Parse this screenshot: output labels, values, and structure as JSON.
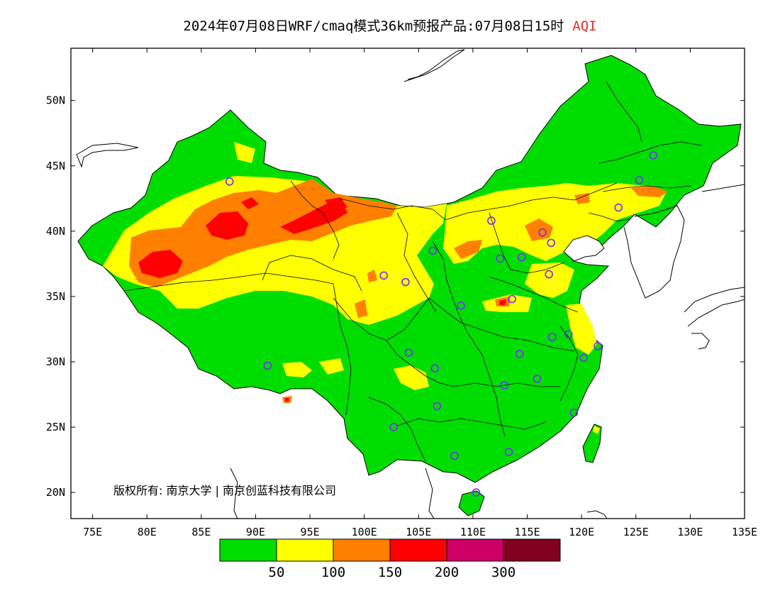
{
  "title": {
    "main": "2024年07月08日WRF/cmaq模式36km预报产品:07月08日15时",
    "variable": "AQI"
  },
  "axes": {
    "lon_labels": [
      "75E",
      "80E",
      "85E",
      "90E",
      "95E",
      "100E",
      "105E",
      "110E",
      "115E",
      "120E",
      "125E",
      "130E",
      "135E"
    ],
    "lat_labels": [
      "20N",
      "25N",
      "30N",
      "35N",
      "40N",
      "45N",
      "50N"
    ],
    "lon_range": [
      73,
      135
    ],
    "lat_range": [
      18,
      54
    ]
  },
  "copyright": "版权所有: 南京大学 | 南京创蓝科技有限公司",
  "colorbar": {
    "colors": [
      "#00dd00",
      "#ffff00",
      "#ff8000",
      "#ff0000",
      "#cc0066",
      "#800020"
    ],
    "labels": [
      "50",
      "100",
      "150",
      "200",
      "300"
    ]
  },
  "stations": [
    {
      "lon": 87.6,
      "lat": 43.8
    },
    {
      "lon": 91.1,
      "lat": 29.7
    },
    {
      "lon": 101.8,
      "lat": 36.6
    },
    {
      "lon": 103.8,
      "lat": 36.1
    },
    {
      "lon": 106.3,
      "lat": 38.5
    },
    {
      "lon": 111.7,
      "lat": 40.8
    },
    {
      "lon": 112.5,
      "lat": 37.9
    },
    {
      "lon": 114.5,
      "lat": 38.0
    },
    {
      "lon": 116.4,
      "lat": 39.9
    },
    {
      "lon": 117.2,
      "lat": 39.1
    },
    {
      "lon": 117.0,
      "lat": 36.7
    },
    {
      "lon": 113.6,
      "lat": 34.8
    },
    {
      "lon": 108.9,
      "lat": 34.3
    },
    {
      "lon": 104.1,
      "lat": 30.7
    },
    {
      "lon": 106.5,
      "lat": 29.5
    },
    {
      "lon": 106.7,
      "lat": 26.6
    },
    {
      "lon": 102.7,
      "lat": 25.0
    },
    {
      "lon": 108.3,
      "lat": 22.8
    },
    {
      "lon": 113.3,
      "lat": 23.1
    },
    {
      "lon": 110.3,
      "lat": 20.0
    },
    {
      "lon": 112.9,
      "lat": 28.2
    },
    {
      "lon": 114.3,
      "lat": 30.6
    },
    {
      "lon": 115.9,
      "lat": 28.7
    },
    {
      "lon": 119.3,
      "lat": 26.1
    },
    {
      "lon": 120.2,
      "lat": 30.3
    },
    {
      "lon": 121.5,
      "lat": 31.2
    },
    {
      "lon": 118.8,
      "lat": 32.1
    },
    {
      "lon": 117.3,
      "lat": 31.9
    },
    {
      "lon": 123.4,
      "lat": 41.8
    },
    {
      "lon": 125.3,
      "lat": 43.9
    },
    {
      "lon": 126.6,
      "lat": 45.8
    }
  ]
}
